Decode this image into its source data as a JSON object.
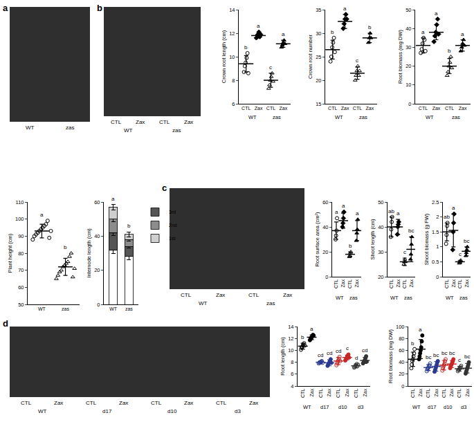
{
  "panel_labels": [
    "a",
    "b",
    "c",
    "d"
  ],
  "photos": [
    {
      "labels": [
        "WT",
        "zas"
      ]
    },
    {
      "labels": [
        "CTL",
        "Zax",
        "CTL",
        "Zax"
      ],
      "groups": [
        "WT",
        "WT",
        "zas",
        "zas"
      ]
    },
    {
      "labels": [
        "CTL",
        "Zax",
        "CTL",
        "Zax"
      ],
      "groups": [
        "WT",
        "WT",
        "zas",
        "zas"
      ]
    },
    {
      "labels": [
        "CTL",
        "Zax",
        "CTL",
        "Zax",
        "CTL",
        "Zax",
        "CTL",
        "Zax"
      ],
      "groups": [
        "WT",
        "WT",
        "d17",
        "d17",
        "d10",
        "d10",
        "d3",
        "d3"
      ]
    }
  ],
  "chart_data": [
    {
      "type": "dotplot",
      "y_label": "Crown root length (cm)",
      "categories": [
        "CTL",
        "Zax",
        "CTL",
        "Zax"
      ],
      "groups": [
        "WT",
        "WT",
        "zas",
        "zas"
      ],
      "values": [
        9.4,
        11.8,
        8.0,
        11.1
      ],
      "errors": [
        0.7,
        0.2,
        0.6,
        0.3
      ],
      "points": [
        [
          8.7,
          9.2,
          9.5,
          9.9,
          10.3,
          8.6
        ],
        [
          11.6,
          11.8,
          11.9,
          12.1,
          11.7,
          11.9
        ],
        [
          7.3,
          7.6,
          8.0,
          8.3,
          8.6,
          7.9
        ],
        [
          10.8,
          11.0,
          11.2,
          11.4,
          11.1
        ]
      ],
      "letters": [
        "b",
        "a",
        "c",
        "a"
      ],
      "colors": [
        "#000000",
        "#000000",
        "#000000",
        "#000000"
      ],
      "markers": [
        "circle-open",
        "diamond",
        "triangle-up-open",
        "triangle-up"
      ],
      "ylim": [
        6,
        14
      ],
      "yticks": [
        6,
        8,
        10,
        12,
        14
      ],
      "grid": false
    },
    {
      "type": "dotplot",
      "y_label": "Crown root number",
      "categories": [
        "CTL",
        "Zax",
        "CTL",
        "Zax"
      ],
      "groups": [
        "WT",
        "WT",
        "zas",
        "zas"
      ],
      "values": [
        26.5,
        32.5,
        21.5,
        29
      ],
      "errors": [
        2,
        1.5,
        1.3,
        1
      ],
      "points": [
        [
          24,
          25,
          27,
          28,
          29,
          26
        ],
        [
          31,
          32,
          33,
          34,
          33
        ],
        [
          20,
          21,
          22,
          23,
          21,
          22
        ],
        [
          28,
          29,
          30,
          29
        ]
      ],
      "letters": [
        "b",
        "a",
        "c",
        "b"
      ],
      "colors": [
        "#000000",
        "#000000",
        "#000000",
        "#000000"
      ],
      "markers": [
        "circle-open",
        "diamond",
        "triangle-up-open",
        "triangle-up"
      ],
      "ylim": [
        15,
        35
      ],
      "yticks": [
        15,
        20,
        25,
        30,
        35
      ],
      "grid": false
    },
    {
      "type": "dotplot",
      "y_label": "Root biomass (mg DW)",
      "categories": [
        "CTL",
        "Zax",
        "CTL",
        "Zax"
      ],
      "groups": [
        "WT",
        "WT",
        "zas",
        "zas"
      ],
      "values": [
        31,
        38,
        20,
        31
      ],
      "errors": [
        4,
        4,
        4,
        3
      ],
      "points": [
        [
          27,
          29,
          32,
          35,
          34,
          28
        ],
        [
          33,
          36,
          38,
          42,
          45,
          37
        ],
        [
          15,
          17,
          20,
          22,
          25,
          19
        ],
        [
          28,
          30,
          32,
          34,
          31
        ]
      ],
      "letters": [
        "a",
        "a",
        "b",
        "a"
      ],
      "colors": [
        "#000000",
        "#000000",
        "#000000",
        "#000000"
      ],
      "markers": [
        "circle-open",
        "diamond",
        "triangle-up-open",
        "triangle-up"
      ],
      "ylim": [
        0,
        50
      ],
      "yticks": [
        0,
        10,
        20,
        30,
        40,
        50
      ],
      "grid": false
    },
    {
      "type": "dotplot",
      "y_label": "Plant height (cm)",
      "categories": [
        "WT",
        "zas"
      ],
      "values": [
        93,
        72
      ],
      "errors": [
        4,
        5
      ],
      "points": [
        [
          88,
          90,
          91,
          92,
          93,
          94,
          95,
          96,
          97,
          99,
          89,
          93
        ],
        [
          65,
          67,
          69,
          70,
          72,
          73,
          74,
          75,
          78,
          80,
          66,
          71
        ]
      ],
      "letters": [
        "a",
        "b"
      ],
      "colors": [
        "#000000",
        "#000000"
      ],
      "markers": [
        "circle-open",
        "triangle-up-open"
      ],
      "ylim": [
        50,
        110
      ],
      "yticks": [
        50,
        60,
        70,
        80,
        90,
        100,
        110
      ],
      "grid": false
    },
    {
      "type": "bar",
      "stacked": true,
      "y_label": "Internode length (cm)",
      "categories": [
        "WT",
        "zas"
      ],
      "series": [
        {
          "color": "#ffffff",
          "values": [
            32,
            28
          ],
          "errors": [
            2,
            2
          ]
        },
        {
          "name": "3rd",
          "color": "#555555",
          "values": [
            10,
            6
          ],
          "errors": [
            1.5,
            1
          ]
        },
        {
          "name": "2nd",
          "color": "#8c8c8c",
          "values": [
            8,
            4
          ],
          "errors": [
            1.5,
            1
          ]
        },
        {
          "name": "1st",
          "color": "#cfcfcf",
          "values": [
            7,
            3
          ],
          "errors": [
            1.5,
            1.5
          ]
        }
      ],
      "letters": [
        "a",
        "b"
      ],
      "legend": "upper right",
      "ylim": [
        0,
        60
      ],
      "yticks": [
        0,
        20,
        40,
        60
      ],
      "grid": false
    },
    {
      "type": "dotplot",
      "y_label": "Root surface area (cm²)",
      "categories": [
        "CTL",
        "Zax",
        "CTL",
        "Zax"
      ],
      "groups": [
        "WT",
        "WT",
        "zas",
        "zas"
      ],
      "values": [
        37,
        45,
        18,
        37
      ],
      "errors": [
        7,
        6,
        2,
        8
      ],
      "points": [
        [
          30,
          33,
          37,
          47
        ],
        [
          40,
          43,
          47,
          52
        ],
        [
          16,
          17,
          19,
          20
        ],
        [
          29,
          35,
          38,
          46
        ]
      ],
      "letters": [
        "a",
        "a",
        "b",
        "a"
      ],
      "colors": [
        "#000000",
        "#000000",
        "#000000",
        "#000000"
      ],
      "markers": [
        "circle-open",
        "diamond",
        "triangle-up-open",
        "triangle-up"
      ],
      "ylim": [
        0,
        60
      ],
      "yticks": [
        0,
        20,
        40,
        60
      ],
      "grid": false
    },
    {
      "type": "dotplot",
      "y_label": "Shoot length (cm)",
      "categories": [
        "CTL",
        "Zax",
        "CTL",
        "Zax"
      ],
      "groups": [
        "WT",
        "WT",
        "zas",
        "zas"
      ],
      "values": [
        40,
        40,
        26,
        31
      ],
      "errors": [
        4,
        3,
        1.5,
        5
      ],
      "points": [
        [
          36,
          39,
          42,
          44
        ],
        [
          37,
          40,
          41,
          42
        ],
        [
          25,
          26,
          27,
          26
        ],
        [
          27,
          29,
          33,
          36
        ]
      ],
      "letters": [
        "ab",
        "a",
        "c",
        "bc"
      ],
      "colors": [
        "#000000",
        "#000000",
        "#000000",
        "#000000"
      ],
      "markers": [
        "circle-open",
        "diamond",
        "triangle-up-open",
        "triangle-up"
      ],
      "ylim": [
        20,
        50
      ],
      "yticks": [
        20,
        30,
        40,
        50
      ],
      "grid": false
    },
    {
      "type": "dotplot",
      "y_label": "Shoot biomass (g FW)",
      "categories": [
        "CTL",
        "Zax",
        "CTL",
        "Zax"
      ],
      "groups": [
        "WT",
        "WT",
        "zas",
        "zas"
      ],
      "values": [
        1.5,
        1.55,
        0.5,
        0.85
      ],
      "errors": [
        0.3,
        0.55,
        0.05,
        0.15
      ],
      "points": [
        [
          1.1,
          1.4,
          1.7,
          1.8
        ],
        [
          0.9,
          1.5,
          1.8,
          2.1
        ],
        [
          0.45,
          0.5,
          0.52,
          0.55
        ],
        [
          0.7,
          0.8,
          0.9,
          1.0
        ]
      ],
      "letters": [
        "ab",
        "a",
        "c",
        "bc"
      ],
      "colors": [
        "#000000",
        "#000000",
        "#000000",
        "#000000"
      ],
      "markers": [
        "circle-open",
        "diamond",
        "triangle-up-open",
        "triangle-up"
      ],
      "ylim": [
        0,
        2.5
      ],
      "yticks": [
        0,
        0.5,
        1,
        1.5,
        2,
        2.5
      ],
      "grid": false
    },
    {
      "type": "dotplot",
      "y_label": "Root length (cm)",
      "categories": [
        "CTL",
        "Zax",
        "CTL",
        "Zax",
        "CTL",
        "Zax",
        "CTL",
        "Zax"
      ],
      "groups": [
        "WT",
        "WT",
        "d17",
        "d17",
        "d10",
        "d10",
        "d3",
        "d3"
      ],
      "values": [
        10.7,
        12.2,
        8.0,
        7.9,
        8.2,
        8.8,
        7.4,
        8.3
      ],
      "errors": [
        0.5,
        0.4,
        0.2,
        0.5,
        0.6,
        0.4,
        0.3,
        0.5
      ],
      "points": [
        [
          10.1,
          10.4,
          10.6,
          10.8,
          11.0,
          11.2,
          10.8
        ],
        [
          11.7,
          11.9,
          12.1,
          12.2,
          12.4,
          12.6,
          12.5
        ],
        [
          7.8,
          7.9,
          8.0,
          8.0,
          8.1,
          8.2,
          7.9
        ],
        [
          7.4,
          7.6,
          7.8,
          8.0,
          8.2,
          8.5,
          7.9
        ],
        [
          7.5,
          7.8,
          8.1,
          8.3,
          8.6,
          8.9,
          8.2
        ],
        [
          8.3,
          8.5,
          8.7,
          8.9,
          9.1,
          9.3,
          8.8
        ],
        [
          7.1,
          7.2,
          7.4,
          7.5,
          7.7,
          7.3,
          7.6
        ],
        [
          7.8,
          8.0,
          8.2,
          8.4,
          8.7,
          9.0,
          8.1
        ]
      ],
      "letters": [
        "b",
        "a",
        "cd",
        "cd",
        "cd",
        "c",
        "d",
        "cd"
      ],
      "colors": [
        "#000000",
        "#000000",
        "#2b3a8f",
        "#2b3a8f",
        "#c62828",
        "#c62828",
        "#333333",
        "#333333"
      ],
      "markers": [
        "circle-open",
        "circle",
        "circle-open",
        "circle",
        "circle-open",
        "circle",
        "circle-open",
        "circle"
      ],
      "ylim": [
        4,
        14
      ],
      "yticks": [
        4,
        6,
        8,
        10,
        12,
        14
      ],
      "grid": false
    },
    {
      "type": "dotplot",
      "y_label": "Root biomass (mg DW)",
      "categories": [
        "CTL",
        "Zax",
        "CTL",
        "Zax",
        "CTL",
        "Zax",
        "CTL",
        "Zax"
      ],
      "groups": [
        "WT",
        "WT",
        "d17",
        "d17",
        "d10",
        "d10",
        "d3",
        "d3"
      ],
      "values": [
        45,
        62,
        31,
        33,
        35,
        37,
        29,
        30
      ],
      "errors": [
        12,
        16,
        5,
        8,
        8,
        6,
        4,
        8
      ],
      "points": [
        [
          30,
          36,
          42,
          45,
          50,
          55,
          62
        ],
        [
          45,
          50,
          55,
          60,
          65,
          75,
          85
        ],
        [
          25,
          28,
          30,
          31,
          33,
          35,
          38
        ],
        [
          24,
          27,
          30,
          33,
          36,
          40,
          42
        ],
        [
          26,
          30,
          33,
          35,
          38,
          42,
          45
        ],
        [
          30,
          33,
          35,
          37,
          40,
          42,
          45
        ],
        [
          25,
          27,
          28,
          29,
          30,
          32,
          34
        ],
        [
          21,
          24,
          27,
          30,
          33,
          36,
          40
        ]
      ],
      "letters": [
        "b",
        "a",
        "bc",
        "bc",
        "bc",
        "bc",
        "c",
        "bc"
      ],
      "colors": [
        "#000000",
        "#000000",
        "#2b3a8f",
        "#2b3a8f",
        "#c62828",
        "#c62828",
        "#333333",
        "#333333"
      ],
      "markers": [
        "circle-open",
        "circle",
        "circle-open",
        "circle",
        "circle-open",
        "circle",
        "circle-open",
        "circle"
      ],
      "ylim": [
        0,
        100
      ],
      "yticks": [
        0,
        20,
        40,
        60,
        80,
        100
      ],
      "grid": false
    }
  ]
}
